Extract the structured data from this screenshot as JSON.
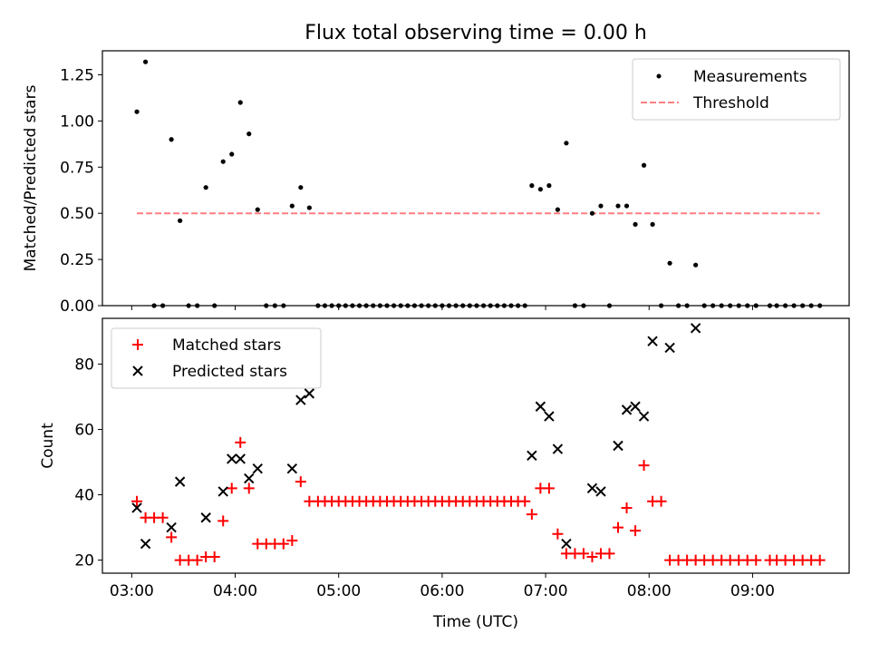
{
  "chart_data": [
    {
      "type": "scatter",
      "title": "Flux total observing time = 0.00 h",
      "xlabel": "",
      "ylabel": "Matched/Predicted stars",
      "xlim": [
        "02:43",
        "09:56"
      ],
      "ylim": [
        0,
        1.38
      ],
      "xticks": [
        "03:00",
        "04:00",
        "05:00",
        "06:00",
        "07:00",
        "08:00",
        "09:00"
      ],
      "yticks": [
        "0.00",
        "0.25",
        "0.50",
        "0.75",
        "1.00",
        "1.25"
      ],
      "legend_position": "upper right",
      "series": [
        {
          "name": "Measurements",
          "marker": "dot",
          "color": "#000000",
          "points": [
            [
              "03:03",
              1.05
            ],
            [
              "03:08",
              1.32
            ],
            [
              "03:13",
              0.0
            ],
            [
              "03:18",
              0.0
            ],
            [
              "03:23",
              0.9
            ],
            [
              "03:28",
              0.46
            ],
            [
              "03:33",
              0.0
            ],
            [
              "03:38",
              0.0
            ],
            [
              "03:43",
              0.64
            ],
            [
              "03:48",
              0.0
            ],
            [
              "03:53",
              0.78
            ],
            [
              "03:58",
              0.82
            ],
            [
              "04:03",
              1.1
            ],
            [
              "04:08",
              0.93
            ],
            [
              "04:13",
              0.52
            ],
            [
              "04:18",
              0.0
            ],
            [
              "04:23",
              0.0
            ],
            [
              "04:28",
              0.0
            ],
            [
              "04:33",
              0.54
            ],
            [
              "04:38",
              0.64
            ],
            [
              "04:43",
              0.53
            ],
            [
              "04:48",
              0.0
            ],
            [
              "04:52",
              0.0
            ],
            [
              "04:56",
              0.0
            ],
            [
              "05:00",
              0.0
            ],
            [
              "05:04",
              0.0
            ],
            [
              "05:08",
              0.0
            ],
            [
              "05:12",
              0.0
            ],
            [
              "05:16",
              0.0
            ],
            [
              "05:20",
              0.0
            ],
            [
              "05:24",
              0.0
            ],
            [
              "05:28",
              0.0
            ],
            [
              "05:32",
              0.0
            ],
            [
              "05:36",
              0.0
            ],
            [
              "05:40",
              0.0
            ],
            [
              "05:44",
              0.0
            ],
            [
              "05:48",
              0.0
            ],
            [
              "05:52",
              0.0
            ],
            [
              "05:56",
              0.0
            ],
            [
              "06:00",
              0.0
            ],
            [
              "06:04",
              0.0
            ],
            [
              "06:08",
              0.0
            ],
            [
              "06:12",
              0.0
            ],
            [
              "06:16",
              0.0
            ],
            [
              "06:20",
              0.0
            ],
            [
              "06:24",
              0.0
            ],
            [
              "06:28",
              0.0
            ],
            [
              "06:32",
              0.0
            ],
            [
              "06:36",
              0.0
            ],
            [
              "06:40",
              0.0
            ],
            [
              "06:44",
              0.0
            ],
            [
              "06:48",
              0.0
            ],
            [
              "06:52",
              0.65
            ],
            [
              "06:57",
              0.63
            ],
            [
              "07:02",
              0.65
            ],
            [
              "07:07",
              0.52
            ],
            [
              "07:12",
              0.88
            ],
            [
              "07:17",
              0.0
            ],
            [
              "07:22",
              0.0
            ],
            [
              "07:27",
              0.5
            ],
            [
              "07:32",
              0.54
            ],
            [
              "07:37",
              0.0
            ],
            [
              "07:42",
              0.54
            ],
            [
              "07:47",
              0.54
            ],
            [
              "07:52",
              0.44
            ],
            [
              "07:57",
              0.76
            ],
            [
              "08:02",
              0.44
            ],
            [
              "08:07",
              0.0
            ],
            [
              "08:12",
              0.23
            ],
            [
              "08:17",
              0.0
            ],
            [
              "08:22",
              0.0
            ],
            [
              "08:27",
              0.22
            ],
            [
              "08:32",
              0.0
            ],
            [
              "08:37",
              0.0
            ],
            [
              "08:42",
              0.0
            ],
            [
              "08:47",
              0.0
            ],
            [
              "08:52",
              0.0
            ],
            [
              "08:57",
              0.0
            ],
            [
              "09:02",
              0.0
            ],
            [
              "09:10",
              0.0
            ],
            [
              "09:14",
              0.0
            ],
            [
              "09:19",
              0.0
            ],
            [
              "09:24",
              0.0
            ],
            [
              "09:29",
              0.0
            ],
            [
              "09:34",
              0.0
            ],
            [
              "09:39",
              0.0
            ]
          ]
        },
        {
          "name": "Threshold",
          "marker": "dashed-line",
          "color": "#ff7f7f",
          "points": [
            [
              "03:03",
              0.5
            ],
            [
              "09:39",
              0.5
            ]
          ]
        }
      ]
    },
    {
      "type": "scatter",
      "title": "",
      "xlabel": "Time (UTC)",
      "ylabel": "Count",
      "xlim": [
        "02:43",
        "09:56"
      ],
      "ylim": [
        16,
        94
      ],
      "xticks": [
        "03:00",
        "04:00",
        "05:00",
        "06:00",
        "07:00",
        "08:00",
        "09:00"
      ],
      "yticks": [
        "20",
        "40",
        "60",
        "80"
      ],
      "legend_position": "upper left",
      "series": [
        {
          "name": "Matched stars",
          "marker": "plus",
          "color": "#ff0000",
          "points": [
            [
              "03:03",
              38
            ],
            [
              "03:08",
              33
            ],
            [
              "03:13",
              33
            ],
            [
              "03:18",
              33
            ],
            [
              "03:23",
              27
            ],
            [
              "03:28",
              20
            ],
            [
              "03:33",
              20
            ],
            [
              "03:38",
              20
            ],
            [
              "03:43",
              21
            ],
            [
              "03:48",
              21
            ],
            [
              "03:53",
              32
            ],
            [
              "03:58",
              42
            ],
            [
              "04:03",
              56
            ],
            [
              "04:08",
              42
            ],
            [
              "04:13",
              25
            ],
            [
              "04:18",
              25
            ],
            [
              "04:23",
              25
            ],
            [
              "04:28",
              25
            ],
            [
              "04:33",
              26
            ],
            [
              "04:38",
              44
            ],
            [
              "04:43",
              38
            ],
            [
              "04:48",
              38
            ],
            [
              "04:52",
              38
            ],
            [
              "04:56",
              38
            ],
            [
              "05:00",
              38
            ],
            [
              "05:04",
              38
            ],
            [
              "05:08",
              38
            ],
            [
              "05:12",
              38
            ],
            [
              "05:16",
              38
            ],
            [
              "05:20",
              38
            ],
            [
              "05:24",
              38
            ],
            [
              "05:28",
              38
            ],
            [
              "05:32",
              38
            ],
            [
              "05:36",
              38
            ],
            [
              "05:40",
              38
            ],
            [
              "05:44",
              38
            ],
            [
              "05:48",
              38
            ],
            [
              "05:52",
              38
            ],
            [
              "05:56",
              38
            ],
            [
              "06:00",
              38
            ],
            [
              "06:04",
              38
            ],
            [
              "06:08",
              38
            ],
            [
              "06:12",
              38
            ],
            [
              "06:16",
              38
            ],
            [
              "06:20",
              38
            ],
            [
              "06:24",
              38
            ],
            [
              "06:28",
              38
            ],
            [
              "06:32",
              38
            ],
            [
              "06:36",
              38
            ],
            [
              "06:40",
              38
            ],
            [
              "06:44",
              38
            ],
            [
              "06:48",
              38
            ],
            [
              "06:52",
              34
            ],
            [
              "06:57",
              42
            ],
            [
              "07:02",
              42
            ],
            [
              "07:07",
              28
            ],
            [
              "07:12",
              22
            ],
            [
              "07:17",
              22
            ],
            [
              "07:22",
              22
            ],
            [
              "07:27",
              21
            ],
            [
              "07:32",
              22
            ],
            [
              "07:37",
              22
            ],
            [
              "07:42",
              30
            ],
            [
              "07:47",
              36
            ],
            [
              "07:52",
              29
            ],
            [
              "07:57",
              49
            ],
            [
              "08:02",
              38
            ],
            [
              "08:07",
              38
            ],
            [
              "08:12",
              20
            ],
            [
              "08:17",
              20
            ],
            [
              "08:22",
              20
            ],
            [
              "08:27",
              20
            ],
            [
              "08:32",
              20
            ],
            [
              "08:37",
              20
            ],
            [
              "08:42",
              20
            ],
            [
              "08:47",
              20
            ],
            [
              "08:52",
              20
            ],
            [
              "08:57",
              20
            ],
            [
              "09:02",
              20
            ],
            [
              "09:10",
              20
            ],
            [
              "09:14",
              20
            ],
            [
              "09:19",
              20
            ],
            [
              "09:24",
              20
            ],
            [
              "09:29",
              20
            ],
            [
              "09:34",
              20
            ],
            [
              "09:39",
              20
            ]
          ]
        },
        {
          "name": "Predicted stars",
          "marker": "x",
          "color": "#000000",
          "points": [
            [
              "03:03",
              36
            ],
            [
              "03:08",
              25
            ],
            [
              "03:23",
              30
            ],
            [
              "03:28",
              44
            ],
            [
              "03:43",
              33
            ],
            [
              "03:53",
              41
            ],
            [
              "03:58",
              51
            ],
            [
              "04:03",
              51
            ],
            [
              "04:08",
              45
            ],
            [
              "04:13",
              48
            ],
            [
              "04:33",
              48
            ],
            [
              "04:38",
              69
            ],
            [
              "04:43",
              71
            ],
            [
              "06:52",
              52
            ],
            [
              "06:57",
              67
            ],
            [
              "07:02",
              64
            ],
            [
              "07:07",
              54
            ],
            [
              "07:12",
              25
            ],
            [
              "07:27",
              42
            ],
            [
              "07:32",
              41
            ],
            [
              "07:42",
              55
            ],
            [
              "07:47",
              66
            ],
            [
              "07:52",
              67
            ],
            [
              "07:57",
              64
            ],
            [
              "08:02",
              87
            ],
            [
              "08:12",
              85
            ],
            [
              "08:27",
              91
            ]
          ]
        }
      ]
    }
  ]
}
